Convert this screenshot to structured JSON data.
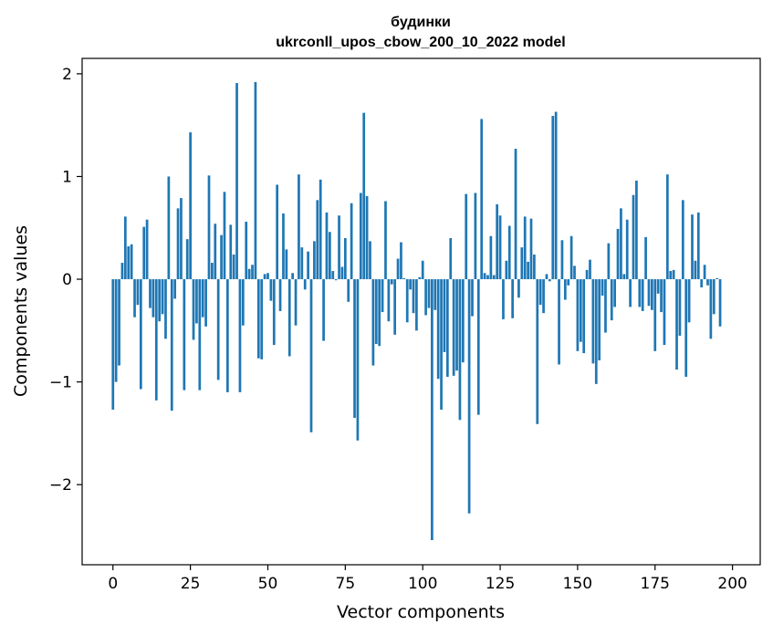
{
  "chart_data": {
    "type": "bar",
    "title_line1": "будинки",
    "title_line2": "ukrconll_upos_cbow_200_10_2022 model",
    "xlabel": "Vector components",
    "ylabel": "Components values",
    "xlim": [
      -9.95,
      208.95
    ],
    "ylim": [
      -2.78,
      2.15
    ],
    "xticks": [
      0,
      25,
      50,
      75,
      100,
      125,
      150,
      175,
      200
    ],
    "xtick_labels": [
      "0",
      "25",
      "50",
      "75",
      "100",
      "125",
      "150",
      "175",
      "200"
    ],
    "yticks": [
      -2,
      -1,
      0,
      1,
      2
    ],
    "ytick_labels": [
      "−2",
      "−1",
      "0",
      "1",
      "2"
    ],
    "grid": false,
    "bar_color": "#1f77b4",
    "values": [
      -1.27,
      -1.0,
      -0.84,
      0.16,
      0.61,
      0.32,
      0.34,
      -0.37,
      -0.25,
      -1.07,
      0.51,
      0.58,
      -0.28,
      -0.37,
      -1.18,
      -0.41,
      -0.34,
      -0.58,
      1.0,
      -1.28,
      -0.19,
      0.69,
      0.79,
      -1.08,
      0.39,
      1.43,
      -0.59,
      -0.43,
      -1.08,
      -0.37,
      -0.46,
      1.01,
      0.16,
      0.54,
      -0.98,
      0.43,
      0.85,
      -1.1,
      0.53,
      0.24,
      1.91,
      -1.1,
      -0.45,
      0.56,
      0.1,
      0.14,
      1.92,
      -0.77,
      -0.78,
      0.05,
      0.06,
      -0.21,
      -0.64,
      0.92,
      -0.31,
      0.64,
      0.29,
      -0.75,
      0.06,
      -0.45,
      1.02,
      0.31,
      -0.1,
      0.27,
      -1.49,
      0.37,
      0.77,
      0.97,
      -0.6,
      0.65,
      0.46,
      0.08,
      -0.01,
      0.62,
      0.12,
      0.4,
      -0.22,
      0.74,
      -1.35,
      -1.57,
      0.84,
      1.62,
      0.81,
      0.37,
      -0.84,
      -0.63,
      -0.65,
      -0.32,
      0.76,
      -0.41,
      -0.05,
      -0.54,
      0.2,
      0.36,
      0.01,
      -0.42,
      -0.1,
      -0.33,
      -0.5,
      0.02,
      0.18,
      -0.35,
      -0.28,
      -2.54,
      -0.3,
      -0.97,
      -1.27,
      -0.71,
      -0.95,
      0.4,
      -0.94,
      -0.89,
      -1.37,
      -0.81,
      0.83,
      -2.28,
      -0.36,
      0.84,
      -1.32,
      1.56,
      0.06,
      0.04,
      0.42,
      0.04,
      0.73,
      0.62,
      -0.39,
      0.18,
      0.52,
      -0.38,
      1.27,
      -0.18,
      0.31,
      0.61,
      0.17,
      0.59,
      0.24,
      -1.41,
      -0.25,
      -0.33,
      0.05,
      -0.02,
      1.59,
      1.63,
      -0.83,
      0.38,
      -0.2,
      -0.06,
      0.42,
      0.13,
      -0.7,
      -0.61,
      -0.72,
      0.09,
      0.19,
      -0.82,
      -1.02,
      -0.79,
      -0.16,
      -0.52,
      0.35,
      -0.4,
      -0.27,
      0.49,
      0.69,
      0.05,
      0.58,
      -0.27,
      0.82,
      0.96,
      -0.27,
      -0.31,
      0.41,
      -0.26,
      -0.3,
      -0.7,
      -0.14,
      -0.32,
      -0.64,
      1.02,
      0.08,
      0.09,
      -0.88,
      -0.55,
      0.77,
      -0.95,
      -0.42,
      0.63,
      0.18,
      0.65,
      -0.08,
      0.14,
      -0.06,
      -0.58,
      -0.34,
      0.01,
      -0.46
    ]
  }
}
